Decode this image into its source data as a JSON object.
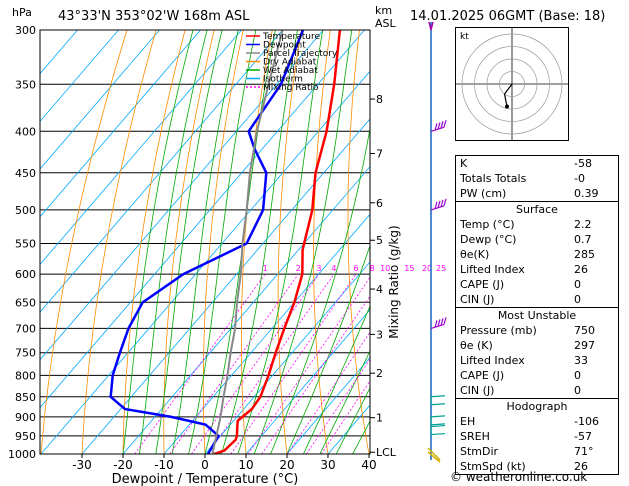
{
  "header": {
    "hpa_label": "hPa",
    "location": "43°33'N  353°02'W  168m  ASL",
    "km_label": "km",
    "asl_label": "ASL",
    "datetime": "14.01.2025  06GMT  (Base: 18)"
  },
  "legend": [
    {
      "label": "Temperature",
      "color": "#ff0000",
      "dash": ""
    },
    {
      "label": "Dewpoint",
      "color": "#0000ff",
      "dash": ""
    },
    {
      "label": "Parcel Trajectory",
      "color": "#888888",
      "dash": ""
    },
    {
      "label": "Dry Adiabat",
      "color": "#ff8c00",
      "dash": ""
    },
    {
      "label": "Wet Adiabat",
      "color": "#00aa00",
      "dash": ""
    },
    {
      "label": "Isotherm",
      "color": "#00aaff",
      "dash": ""
    },
    {
      "label": "Mixing Ratio",
      "color": "#ff00ff",
      "dash": "2,2"
    }
  ],
  "chart_data": {
    "type": "line",
    "xlabel": "Dewpoint / Temperature (°C)",
    "ylabel_right": "Mixing Ratio (g/kg)",
    "x_ticks": [
      "-30",
      "-20",
      "-10",
      "0",
      "10",
      "20",
      "30",
      "40"
    ],
    "pressure_levels": [
      300,
      350,
      400,
      450,
      500,
      550,
      600,
      650,
      700,
      750,
      800,
      850,
      900,
      950,
      1000
    ],
    "km_ticks": [
      {
        "p": 365,
        "label": "8"
      },
      {
        "p": 426,
        "label": "7"
      },
      {
        "p": 490,
        "label": "6"
      },
      {
        "p": 545,
        "label": "5"
      },
      {
        "p": 626,
        "label": "4"
      },
      {
        "p": 712,
        "label": "3"
      },
      {
        "p": 795,
        "label": "2"
      },
      {
        "p": 902,
        "label": "1"
      },
      {
        "p": 995,
        "label": "LCL"
      }
    ],
    "mixing_ratio_labels": [
      "1",
      "2",
      "3",
      "4",
      "6",
      "8",
      "10",
      "15",
      "20",
      "25"
    ],
    "mixing_ratio_values": [
      1,
      2,
      3,
      4,
      6,
      8,
      10,
      15,
      20,
      25
    ],
    "series": [
      {
        "name": "Temperature",
        "color": "#ff0000",
        "points": [
          [
            1000,
            2.2
          ],
          [
            990,
            4
          ],
          [
            960,
            4.5
          ],
          [
            950,
            4
          ],
          [
            930,
            2.5
          ],
          [
            910,
            1
          ],
          [
            880,
            2
          ],
          [
            850,
            1.5
          ],
          [
            800,
            -1
          ],
          [
            750,
            -4
          ],
          [
            700,
            -7
          ],
          [
            650,
            -10
          ],
          [
            600,
            -14
          ],
          [
            560,
            -19
          ],
          [
            500,
            -25
          ],
          [
            450,
            -32
          ],
          [
            400,
            -38
          ],
          [
            350,
            -46
          ],
          [
            300,
            -56
          ]
        ]
      },
      {
        "name": "Dewpoint",
        "color": "#0000ff",
        "points": [
          [
            1000,
            0.7
          ],
          [
            990,
            0.5
          ],
          [
            950,
            -0.5
          ],
          [
            920,
            -6
          ],
          [
            900,
            -16
          ],
          [
            880,
            -29
          ],
          [
            850,
            -35
          ],
          [
            800,
            -39
          ],
          [
            750,
            -42
          ],
          [
            700,
            -45
          ],
          [
            650,
            -47
          ],
          [
            600,
            -43
          ],
          [
            550,
            -34
          ],
          [
            500,
            -37
          ],
          [
            450,
            -44
          ],
          [
            420,
            -52
          ],
          [
            400,
            -57
          ],
          [
            350,
            -59
          ],
          [
            300,
            -65
          ]
        ]
      },
      {
        "name": "Parcel Trajectory",
        "color": "#888888",
        "points": [
          [
            1000,
            2.2
          ],
          [
            995,
            1.5
          ],
          [
            950,
            -1
          ],
          [
            900,
            -4
          ],
          [
            850,
            -7.5
          ],
          [
            800,
            -11
          ],
          [
            750,
            -15
          ],
          [
            700,
            -19
          ],
          [
            650,
            -24
          ],
          [
            600,
            -29
          ],
          [
            550,
            -35
          ],
          [
            500,
            -41
          ],
          [
            450,
            -48
          ],
          [
            400,
            -55
          ],
          [
            350,
            -62
          ],
          [
            300,
            -70
          ]
        ]
      }
    ],
    "winds": [
      {
        "p": 300,
        "kind": "arrow"
      },
      {
        "p": 400,
        "kind": "barb"
      },
      {
        "p": 500,
        "kind": "barb"
      },
      {
        "p": 700,
        "kind": "barb"
      },
      {
        "p": 850,
        "kind": "low"
      },
      {
        "p": 900,
        "kind": "low"
      },
      {
        "p": 925,
        "kind": "low"
      },
      {
        "p": 1000,
        "kind": "surface"
      }
    ]
  },
  "hodograph": {
    "label": "kt",
    "rings": [
      10,
      20,
      30,
      40
    ],
    "points": [
      [
        -4,
        -18
      ],
      [
        -6,
        -8
      ],
      [
        -3,
        -4
      ],
      [
        0,
        0
      ]
    ]
  },
  "indices": {
    "top": [
      {
        "label": "K",
        "value": "-58"
      },
      {
        "label": "Totals Totals",
        "value": "-0"
      },
      {
        "label": "PW (cm)",
        "value": "0.39"
      }
    ],
    "surface": {
      "title": "Surface",
      "rows": [
        {
          "label": "Temp (°C)",
          "value": "2.2"
        },
        {
          "label": "Dewp (°C)",
          "value": "0.7"
        },
        {
          "label": "θe(K)",
          "value": "285"
        },
        {
          "label": "Lifted Index",
          "value": "26"
        },
        {
          "label": "CAPE (J)",
          "value": "0"
        },
        {
          "label": "CIN (J)",
          "value": "0"
        }
      ]
    },
    "unstable": {
      "title": "Most Unstable",
      "rows": [
        {
          "label": "Pressure (mb)",
          "value": "750"
        },
        {
          "label": "θe (K)",
          "value": "297"
        },
        {
          "label": "Lifted Index",
          "value": "33"
        },
        {
          "label": "CAPE (J)",
          "value": "0"
        },
        {
          "label": "CIN (J)",
          "value": "0"
        }
      ]
    },
    "hodograph": {
      "title": "Hodograph",
      "rows": [
        {
          "label": "EH",
          "value": "-106"
        },
        {
          "label": "SREH",
          "value": "-57"
        },
        {
          "label": "StmDir",
          "value": "71°"
        },
        {
          "label": "StmSpd (kt)",
          "value": "26"
        }
      ]
    }
  },
  "copyright": "© weatheronline.co.uk"
}
